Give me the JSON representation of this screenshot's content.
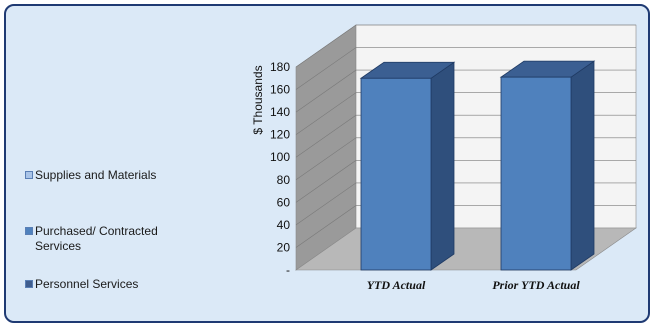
{
  "chart_data": {
    "type": "bar",
    "stacked": true,
    "three_d": true,
    "categories": [
      "YTD Actual",
      "Prior YTD Actual"
    ],
    "series": [
      {
        "name": "Personnel Services",
        "values": [
          0,
          0
        ],
        "color": "#3f5d8e"
      },
      {
        "name": "Purchased/ Contracted Services",
        "values": [
          170,
          171
        ],
        "color": "#4f81bd"
      },
      {
        "name": "Supplies and Materials",
        "values": [
          0,
          0
        ],
        "color": "#a9c4e8"
      }
    ],
    "ylabel": "$ Thousands",
    "ylim": [
      0,
      180
    ],
    "yticks": [
      0,
      20,
      40,
      60,
      80,
      100,
      120,
      140,
      160,
      180
    ],
    "ytick_labels": [
      "-",
      "20",
      "40",
      "60",
      "80",
      "100",
      "120",
      "140",
      "160",
      "180"
    ],
    "grid": true,
    "legend_position": "left"
  },
  "colors": {
    "background": "#dbe9f7",
    "border": "#1f3a73",
    "wall": "#f4f4f4",
    "side_wall": "#9a9a9a",
    "floor": "#b8b8b8",
    "bar_front": "#4f81bd",
    "bar_side": "#2f4f7c",
    "bar_top": "#3b5f92"
  }
}
